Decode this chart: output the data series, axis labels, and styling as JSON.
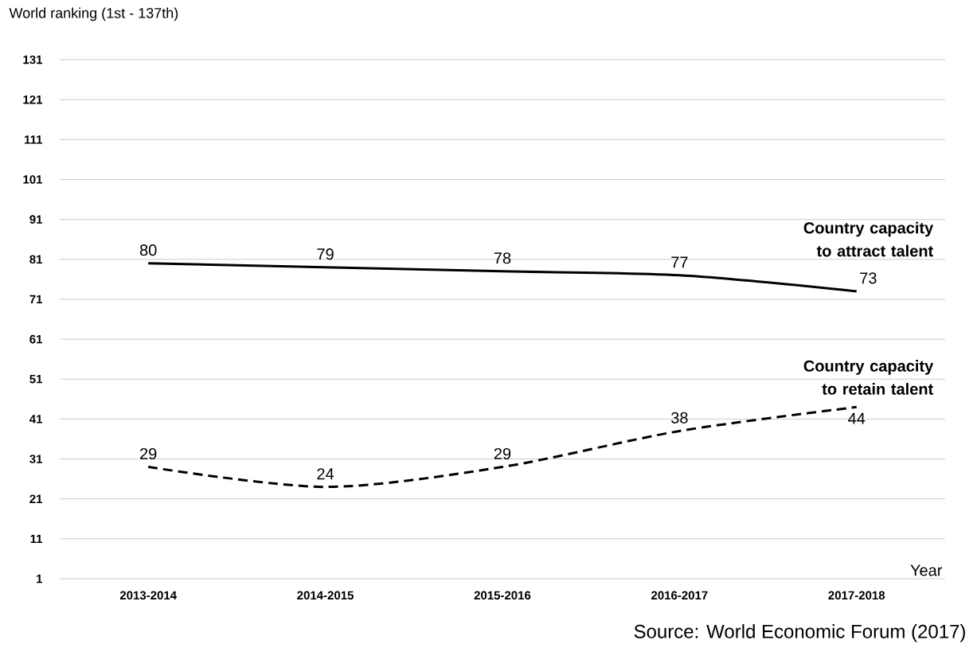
{
  "chart_data": {
    "type": "line",
    "ylabel": "World ranking (1st - 137th)",
    "xlabel": "Year",
    "categories": [
      "2013-2014",
      "2014-2015",
      "2015-2016",
      "2016-2017",
      "2017-2018"
    ],
    "series": [
      {
        "name": "Country capacity to attract talent",
        "color": "#000000",
        "line_style": "solid",
        "values": [
          80,
          79,
          78,
          77,
          73
        ]
      },
      {
        "name": "Country capacity to retain talent",
        "color": "#000000",
        "line_style": "dashed",
        "values": [
          29,
          24,
          29,
          38,
          44
        ]
      }
    ],
    "ylim": [
      1,
      131
    ],
    "yticks": [
      1,
      11,
      21,
      31,
      41,
      51,
      61,
      71,
      81,
      91,
      101,
      111,
      121,
      131
    ],
    "grid": "y",
    "marker": "none",
    "data_labels": true,
    "annotations": [
      "Source: World Economic Forum (2017)"
    ]
  }
}
